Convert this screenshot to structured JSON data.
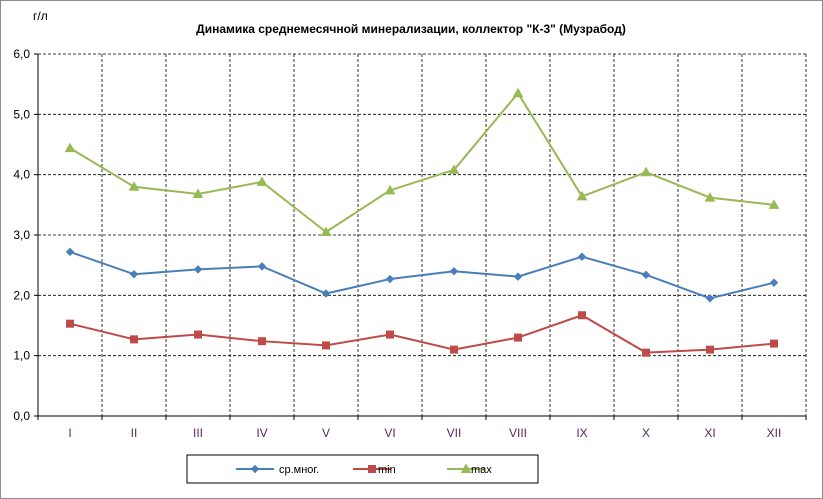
{
  "chart_data": {
    "type": "line",
    "title": "Динамика среднемесячной минерализации, коллектор \"К-3\" (Музрабод)",
    "ylabel": "г/л",
    "xlabel": "",
    "ylim": [
      0,
      6
    ],
    "yticks": [
      "0,0",
      "1,0",
      "2,0",
      "3,0",
      "4,0",
      "5,0",
      "6,0"
    ],
    "categories": [
      "I",
      "II",
      "III",
      "IV",
      "V",
      "VI",
      "VII",
      "VIII",
      "IX",
      "X",
      "XI",
      "XII"
    ],
    "grid": true,
    "legend_position": "bottom",
    "series": [
      {
        "name": "ср.мног.",
        "color": "#4a7ebb",
        "marker": "diamond",
        "values": [
          2.72,
          2.35,
          2.43,
          2.48,
          2.03,
          2.27,
          2.4,
          2.31,
          2.64,
          2.34,
          1.95,
          2.21
        ]
      },
      {
        "name": "min",
        "color": "#be4b48",
        "marker": "square",
        "values": [
          1.53,
          1.27,
          1.35,
          1.24,
          1.17,
          1.35,
          1.1,
          1.3,
          1.67,
          1.05,
          1.1,
          1.2
        ]
      },
      {
        "name": "max",
        "color": "#98b954",
        "marker": "triangle",
        "values": [
          4.44,
          3.8,
          3.68,
          3.88,
          3.05,
          3.74,
          4.08,
          5.35,
          3.64,
          4.04,
          3.62,
          3.5
        ]
      }
    ]
  }
}
